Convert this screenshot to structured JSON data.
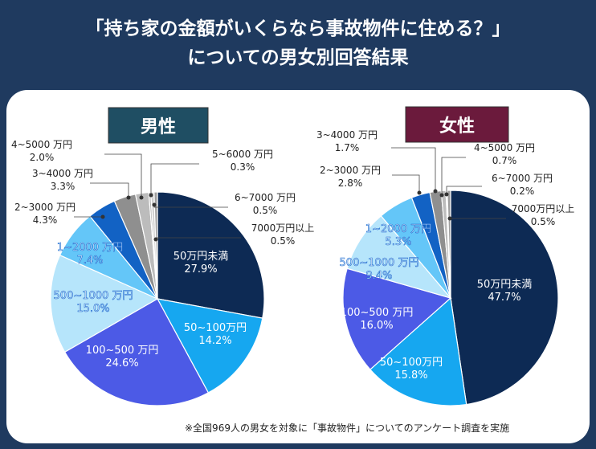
{
  "title": {
    "line1": "「持ち家の金額がいくらなら事故物件に住める？」",
    "line2": "についての男女別回答結果"
  },
  "footnote": "※全国969人の男女を対象に「事故物件」についてのアンケート調査を実施",
  "colors": {
    "background": "#1f3a5f",
    "male_tag": "#1f4e63",
    "female_tag": "#6b1a3c"
  },
  "chart_data": [
    {
      "type": "pie",
      "title": "男性",
      "slices": [
        {
          "label": "50万円未満",
          "value": 27.9,
          "color": "#0d2a54"
        },
        {
          "label": "50~100万円",
          "value": 14.2,
          "color": "#16a7f0"
        },
        {
          "label": "100~500 万円",
          "value": 24.6,
          "color": "#4c5ae6"
        },
        {
          "label": "500~1000 万円",
          "value": 15.0,
          "color": "#b6e5fb"
        },
        {
          "label": "1~2000 万円",
          "value": 7.4,
          "color": "#64c6f8"
        },
        {
          "label": "2~3000 万円",
          "value": 4.3,
          "color": "#1262c4"
        },
        {
          "label": "3~4000 万円",
          "value": 3.3,
          "color": "#8f8f8f"
        },
        {
          "label": "4~5000 万円",
          "value": 2.0,
          "color": "#bcbcbc"
        },
        {
          "label": "5~6000 万円",
          "value": 0.3,
          "color": "#b0b0b0"
        },
        {
          "label": "6~7000 万円",
          "value": 0.5,
          "color": "#d0d0d0"
        },
        {
          "label": "7000万円以上",
          "value": 0.5,
          "color": "#9e9e9e"
        }
      ]
    },
    {
      "type": "pie",
      "title": "女性",
      "slices": [
        {
          "label": "50万円未満",
          "value": 47.7,
          "color": "#0d2a54"
        },
        {
          "label": "50~100万円",
          "value": 15.8,
          "color": "#16a7f0"
        },
        {
          "label": "100~500 万円",
          "value": 16.0,
          "color": "#4c5ae6"
        },
        {
          "label": "500~1000 万円",
          "value": 9.4,
          "color": "#b6e5fb"
        },
        {
          "label": "1~2000 万円",
          "value": 5.3,
          "color": "#64c6f8"
        },
        {
          "label": "2~3000 万円",
          "value": 2.8,
          "color": "#1262c4"
        },
        {
          "label": "3~4000 万円",
          "value": 1.7,
          "color": "#8f8f8f"
        },
        {
          "label": "4~5000 万円",
          "value": 0.7,
          "color": "#bcbcbc"
        },
        {
          "label": "6~7000 万円",
          "value": 0.2,
          "color": "#d0d0d0"
        },
        {
          "label": "7000万円以上",
          "value": 0.5,
          "color": "#9e9e9e"
        }
      ]
    }
  ]
}
